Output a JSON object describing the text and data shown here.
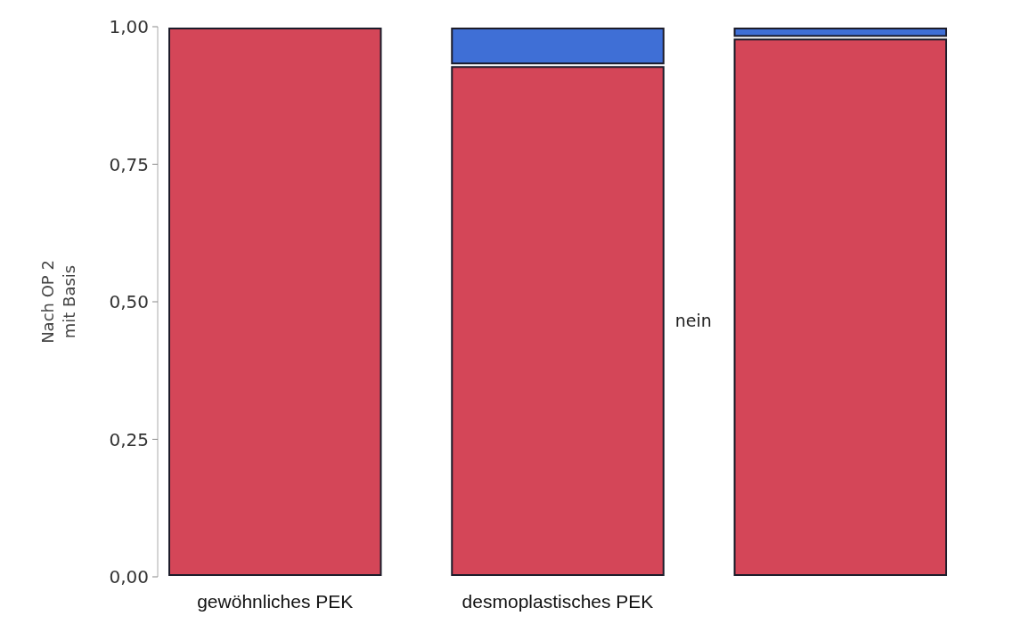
{
  "chart_data": {
    "type": "bar",
    "stacked": true,
    "ylabel": "Nach OP 2 mit Basis",
    "categories": [
      "gewöhnliches PEK",
      "desmoplastisches PEK",
      null
    ],
    "series": [
      {
        "name": "nein",
        "color": "#d44658",
        "values": [
          1.0,
          0.93,
          0.98
        ]
      },
      {
        "color": "#3f6fd6",
        "values": [
          0,
          0.07,
          0.02
        ]
      }
    ],
    "ylim": [
      0,
      1
    ],
    "yticks": [
      {
        "value": 0,
        "label": "0,00"
      },
      {
        "value": 0.25,
        "label": "0,25"
      },
      {
        "value": 0.5,
        "label": "0,50"
      },
      {
        "value": 0.75,
        "label": "0,75"
      },
      {
        "value": 1,
        "label": "1,00"
      }
    ],
    "grid": false
  }
}
